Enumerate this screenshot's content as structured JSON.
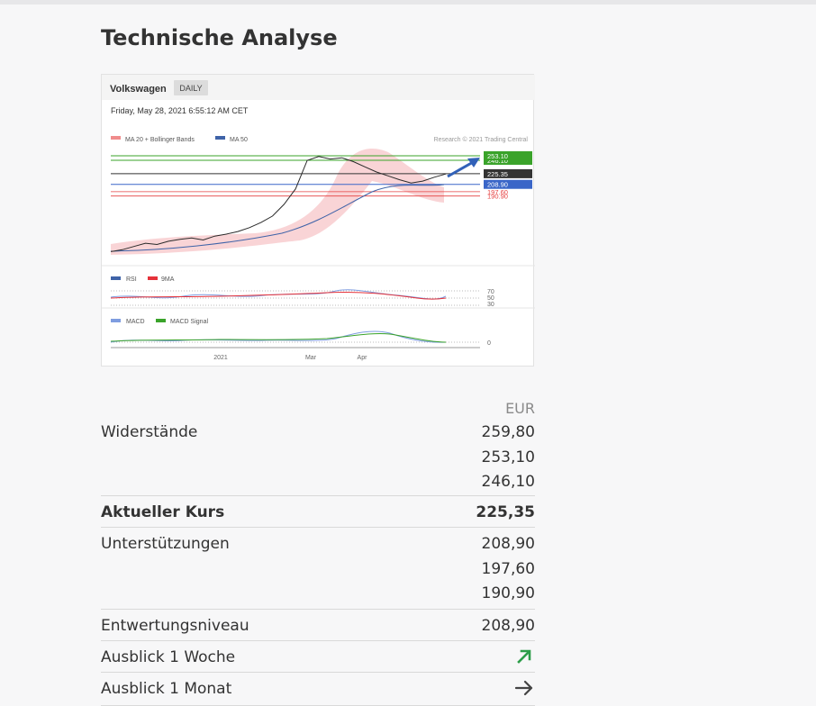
{
  "page": {
    "title": "Technische Analyse"
  },
  "chart": {
    "stock_name": "Volkswagen",
    "interval": "DAILY",
    "timestamp": "Friday, May 28, 2021 6:55:12 AM CET",
    "legend": [
      "MA 20 + Bollinger Bands",
      "MA 50"
    ],
    "credit": "Research © 2021 Trading Central",
    "rsi_legend": [
      "RSI",
      "9MA"
    ],
    "macd_legend": [
      "MACD",
      "MACD Signal"
    ],
    "colors": {
      "resistance": "#3aa32a",
      "support": "#3a66c8",
      "red": "#e54040",
      "ma50": "#3f63a8",
      "bollinger": "#f7c9cc"
    }
  },
  "chart_data": {
    "type": "line",
    "title": "",
    "x_ticks": [
      "2021",
      "Mar",
      "Apr"
    ],
    "price_levels": [
      {
        "label": "246.10",
        "value": 246.1,
        "kind": "resistance"
      },
      {
        "label": "253.10",
        "value": 253.1,
        "kind": "resistance"
      },
      {
        "label": "225.35",
        "value": 225.35,
        "kind": "current"
      },
      {
        "label": "208.90",
        "value": 208.9,
        "kind": "support"
      },
      {
        "label": "197.60",
        "value": 197.6,
        "kind": "support"
      },
      {
        "label": "190.90",
        "value": 190.9,
        "kind": "support"
      }
    ],
    "series": [
      {
        "name": "MA 50",
        "values": [
          108,
          110,
          114,
          118,
          122,
          126,
          132,
          140,
          150,
          160,
          172,
          185,
          196,
          204,
          210,
          214,
          218
        ]
      },
      {
        "name": "RSI",
        "values": [
          48,
          52,
          47,
          55,
          50,
          53,
          49,
          56,
          62,
          70,
          66,
          60,
          55,
          48,
          44,
          47,
          50
        ]
      }
    ],
    "price": [
      105,
      108,
      113,
      118,
      116,
      121,
      124,
      126,
      123,
      129,
      132,
      136,
      142,
      150,
      160,
      178,
      202,
      246,
      252,
      248,
      250,
      244,
      236,
      228,
      222,
      216,
      211,
      214,
      220,
      225
    ],
    "rsi_levels": [
      "70",
      "50",
      "30"
    ],
    "macd_level": "0"
  },
  "levels": {
    "currency": "EUR",
    "resistance_label": "Widerstände",
    "resistance_values": [
      "259,80",
      "253,10",
      "246,10"
    ],
    "current_label": "Aktueller Kurs",
    "current_value": "225,35",
    "support_label": "Unterstützungen",
    "support_values": [
      "208,90",
      "197,60",
      "190,90"
    ],
    "invalidation_label": "Entwertungsniveau",
    "invalidation_value": "208,90",
    "outlook_week_label": "Ausblick 1 Woche",
    "outlook_week_icon": "arrow-up-right-icon",
    "outlook_month_label": "Ausblick 1 Monat",
    "outlook_month_icon": "arrow-right-icon"
  }
}
